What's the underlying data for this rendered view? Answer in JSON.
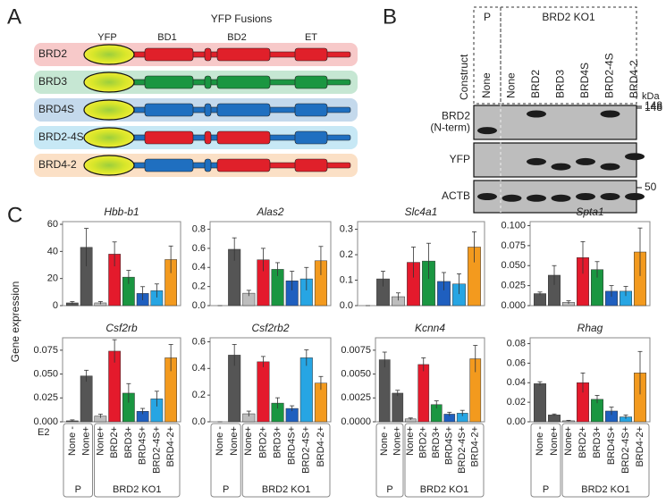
{
  "panel_labels": [
    "A",
    "B",
    "C"
  ],
  "panel_a": {
    "title": "YFP Fusions",
    "domains": [
      "YFP",
      "BD1",
      "BD2",
      "ET"
    ],
    "constructs": [
      "BRD2",
      "BRD3",
      "BRD4S",
      "BRD2-4S",
      "BRD4-2"
    ]
  },
  "panel_b": {
    "groups": [
      "P",
      "BRD2 KO1"
    ],
    "construct_label": "Construct",
    "lanes": [
      "None",
      "None",
      "BRD2",
      "BRD3",
      "BRD4S",
      "BRD2-4S",
      "BRD4-2"
    ],
    "unit": "kDa",
    "rows": [
      {
        "label": [
          "BRD2",
          "(N-term)"
        ],
        "marker": 148
      },
      {
        "label": [
          "YFP"
        ],
        "marker": 148
      },
      {
        "label": [
          "ACTB"
        ],
        "marker": 50
      }
    ]
  },
  "panel_c": {
    "y_axis_label": "Gene expression"
  },
  "chart_data": [
    {
      "type": "bar",
      "title": "Hbb-b1",
      "values": [
        2,
        43,
        2,
        38,
        21,
        9,
        11,
        34
      ],
      "errors": [
        1,
        14,
        1,
        9,
        5,
        5,
        5,
        10
      ],
      "colors": [
        "#555555",
        "#555555",
        "#bdbdbd",
        "#e41a2c",
        "#1a9641",
        "#1f5fbf",
        "#27a5e3",
        "#f39a1e"
      ],
      "ylim": [
        0,
        62
      ],
      "yticks": [
        0,
        20,
        40,
        60
      ]
    },
    {
      "type": "bar",
      "title": "Alas2",
      "values": [
        0.0,
        0.59,
        0.13,
        0.48,
        0.38,
        0.26,
        0.28,
        0.47
      ],
      "errors": [
        0,
        0.12,
        0.03,
        0.12,
        0.07,
        0.1,
        0.12,
        0.15
      ],
      "colors": [
        "#555555",
        "#555555",
        "#bdbdbd",
        "#e41a2c",
        "#1a9641",
        "#1f5fbf",
        "#27a5e3",
        "#f39a1e"
      ],
      "ylim": [
        0,
        0.88
      ],
      "yticks": [
        {
          "value": 0,
          "label": "0.0"
        },
        0.2,
        0.4,
        0.6,
        0.8
      ]
    },
    {
      "type": "bar",
      "title": "Slc4a1",
      "values": [
        0.0,
        0.105,
        0.035,
        0.17,
        0.175,
        0.095,
        0.085,
        0.23
      ],
      "errors": [
        0,
        0.03,
        0.015,
        0.06,
        0.07,
        0.035,
        0.04,
        0.06
      ],
      "colors": [
        "#555555",
        "#555555",
        "#bdbdbd",
        "#e41a2c",
        "#1a9641",
        "#1f5fbf",
        "#27a5e3",
        "#f39a1e"
      ],
      "ylim": [
        0,
        0.33
      ],
      "yticks": [
        {
          "value": 0,
          "label": "0.0"
        },
        0.1,
        0.2,
        0.3
      ]
    },
    {
      "type": "bar",
      "title": "Spta1",
      "values": [
        0.015,
        0.038,
        0.004,
        0.06,
        0.045,
        0.018,
        0.018,
        0.067
      ],
      "errors": [
        0.002,
        0.012,
        0.002,
        0.02,
        0.01,
        0.007,
        0.006,
        0.03
      ],
      "colors": [
        "#555555",
        "#555555",
        "#bdbdbd",
        "#e41a2c",
        "#1a9641",
        "#1f5fbf",
        "#27a5e3",
        "#f39a1e"
      ],
      "ylim": [
        0,
        0.105
      ],
      "yticks": [
        {
          "value": 0,
          "label": "0.000"
        },
        {
          "value": 0.025,
          "label": "0.025"
        },
        {
          "value": 0.05,
          "label": "0.050"
        },
        {
          "value": 0.075,
          "label": "0.075"
        },
        {
          "value": 0.1,
          "label": "0.100"
        }
      ]
    },
    {
      "type": "bar",
      "title": "Csf2rb",
      "values": [
        0.001,
        0.048,
        0.006,
        0.074,
        0.03,
        0.011,
        0.024,
        0.067
      ],
      "errors": [
        0.001,
        0.006,
        0.002,
        0.012,
        0.01,
        0.003,
        0.008,
        0.014
      ],
      "colors": [
        "#555555",
        "#555555",
        "#bdbdbd",
        "#e41a2c",
        "#1a9641",
        "#1f5fbf",
        "#27a5e3",
        "#f39a1e"
      ],
      "ylim": [
        0,
        0.088
      ],
      "yticks": [
        {
          "value": 0,
          "label": "0.000"
        },
        {
          "value": 0.025,
          "label": "0.025"
        },
        {
          "value": 0.05,
          "label": "0.050"
        },
        {
          "value": 0.075,
          "label": "0.075"
        }
      ],
      "x_axis_label": "E2",
      "categories": [
        "None -",
        "None+",
        "None+",
        "BRD2+",
        "BRD3+",
        "BRD4S+",
        "BRD2-4S+",
        "BRD4-2+"
      ],
      "groups": [
        "P",
        "BRD2 KO1"
      ]
    },
    {
      "type": "bar",
      "title": "Csf2rb2",
      "values": [
        0.0,
        0.5,
        0.06,
        0.45,
        0.14,
        0.1,
        0.48,
        0.29
      ],
      "errors": [
        0,
        0.08,
        0.02,
        0.04,
        0.04,
        0.02,
        0.06,
        0.05
      ],
      "colors": [
        "#555555",
        "#555555",
        "#bdbdbd",
        "#e41a2c",
        "#1a9641",
        "#1f5fbf",
        "#27a5e3",
        "#f39a1e"
      ],
      "ylim": [
        0,
        0.63
      ],
      "yticks": [
        {
          "value": 0,
          "label": "0.0"
        },
        0.2,
        0.4,
        0.6
      ],
      "categories": [
        "None -",
        "None+",
        "None+",
        "BRD2+",
        "BRD3+",
        "BRD4S+",
        "BRD2-4S+",
        "BRD4-2+"
      ],
      "groups": [
        "P",
        "BRD2 KO1"
      ]
    },
    {
      "type": "bar",
      "title": "Kcnn4",
      "values": [
        0.0065,
        0.003,
        0.0003,
        0.006,
        0.0018,
        0.0008,
        0.0009,
        0.0066
      ],
      "errors": [
        0.0008,
        0.0003,
        0.0001,
        0.0007,
        0.0004,
        0.0002,
        0.0003,
        0.0014
      ],
      "colors": [
        "#555555",
        "#555555",
        "#bdbdbd",
        "#e41a2c",
        "#1a9641",
        "#1f5fbf",
        "#27a5e3",
        "#f39a1e"
      ],
      "ylim": [
        0,
        0.0088
      ],
      "yticks": [
        {
          "value": 0,
          "label": "0.0000"
        },
        {
          "value": 0.0025,
          "label": "0.0025"
        },
        {
          "value": 0.005,
          "label": "0.0050"
        },
        {
          "value": 0.0075,
          "label": "0.0075"
        }
      ],
      "categories": [
        "None -",
        "None+",
        "None+",
        "BRD2+",
        "BRD3+",
        "BRD4S+",
        "BRD2-4S+",
        "BRD4-2+"
      ],
      "groups": [
        "P",
        "BRD2 KO1"
      ]
    },
    {
      "type": "bar",
      "title": "Rhag",
      "values": [
        0.039,
        0.007,
        0.001,
        0.04,
        0.023,
        0.011,
        0.005,
        0.05
      ],
      "errors": [
        0.002,
        0.001,
        0.0005,
        0.01,
        0.004,
        0.004,
        0.002,
        0.022
      ],
      "colors": [
        "#555555",
        "#555555",
        "#bdbdbd",
        "#e41a2c",
        "#1a9641",
        "#1f5fbf",
        "#27a5e3",
        "#f39a1e"
      ],
      "ylim": [
        0,
        0.086
      ],
      "yticks": [
        {
          "value": 0,
          "label": "0.00"
        },
        {
          "value": 0.02,
          "label": "0.02"
        },
        {
          "value": 0.04,
          "label": "0.04"
        },
        {
          "value": 0.06,
          "label": "0.06"
        },
        {
          "value": 0.08,
          "label": "0.08"
        }
      ],
      "categories": [
        "None -",
        "None+",
        "None+",
        "BRD2+",
        "BRD3+",
        "BRD4S+",
        "BRD2-4S+",
        "BRD4-2+"
      ],
      "groups": [
        "P",
        "BRD2 KO1"
      ]
    }
  ]
}
